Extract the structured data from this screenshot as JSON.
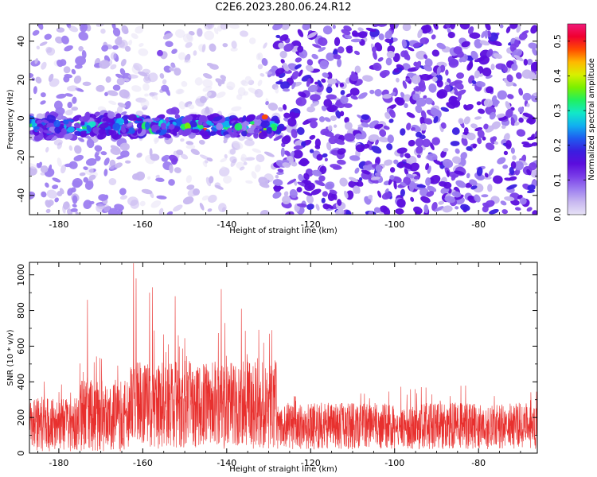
{
  "title": "C2E6.2023.280.06.24.R12",
  "colors": {
    "snr_line": "#e8302e",
    "colormap": [
      "#e7e2f6",
      "#c8b8f0",
      "#9d7ef0",
      "#7a3ee8",
      "#5b0ddd",
      "#3a1ee0",
      "#1f5cf0",
      "#11b0f0",
      "#12e8c8",
      "#20f060",
      "#7af000",
      "#d8f000",
      "#ffb800",
      "#ff4a00",
      "#f00030",
      "#f01a7a"
    ]
  },
  "chart_data": [
    {
      "type": "heatmap",
      "xlabel": "Height of straight line (km)",
      "ylabel": "Frequency (Hz)",
      "xlim": [
        -187,
        -66
      ],
      "ylim": [
        -50,
        49
      ],
      "xticks": [
        -180,
        -160,
        -140,
        -120,
        -100,
        -80
      ],
      "yticks": [
        -40,
        -20,
        0,
        20,
        40
      ],
      "colorbar": {
        "label": "Normalized spectral amplitude",
        "range": [
          0.0,
          0.55
        ],
        "ticks": [
          "0.0",
          "0.1",
          "0.2",
          "0.3",
          "0.4",
          "0.5"
        ]
      },
      "features": {
        "signal_band": {
          "x_range": [
            -187,
            -127
          ],
          "frequency_center": -4,
          "frequency_halfwidth": 5,
          "peak_amplitude": 0.5
        },
        "noise_regions": [
          {
            "x_range": [
              -187,
              -163
            ],
            "level": 0.05
          },
          {
            "x_range": [
              -163,
              -156
            ],
            "level": 0.02
          },
          {
            "x_range": [
              -156,
              -152
            ],
            "level": 0.06
          },
          {
            "x_range": [
              -152,
              -140
            ],
            "level": 0.025
          },
          {
            "x_range": [
              -140,
              -132
            ],
            "level": 0.015
          },
          {
            "x_range": [
              -132,
              -128
            ],
            "level": 0.04
          },
          {
            "x_range": [
              -128,
              -66
            ],
            "level": 0.1
          }
        ]
      }
    },
    {
      "type": "line",
      "xlabel": "Height of straight line (km)",
      "ylabel": "SNR (10 * v/v)",
      "xlim": [
        -187,
        -66
      ],
      "ylim": [
        0,
        1070
      ],
      "xticks": [
        -180,
        -160,
        -140,
        -120,
        -100,
        -80
      ],
      "yticks": [
        0,
        200,
        400,
        600,
        800,
        1000
      ],
      "envelope": [
        {
          "x_range": [
            -187,
            -175
          ],
          "min": 20,
          "max": 420
        },
        {
          "x_range": [
            -175,
            -163
          ],
          "min": 20,
          "max": 560
        },
        {
          "x_range": [
            -163,
            -128
          ],
          "min": 40,
          "max": 700
        },
        {
          "x_range": [
            -128,
            -66
          ],
          "min": 30,
          "max": 380
        }
      ],
      "peaks": [
        {
          "x": -173.2,
          "y": 860
        },
        {
          "x": -162.2,
          "y": 1065
        },
        {
          "x": -161.6,
          "y": 980
        },
        {
          "x": -158.4,
          "y": 900
        },
        {
          "x": -157.7,
          "y": 930
        },
        {
          "x": -152.3,
          "y": 880
        },
        {
          "x": -150.0,
          "y": 645
        },
        {
          "x": -141.3,
          "y": 920
        },
        {
          "x": -140.4,
          "y": 730
        },
        {
          "x": -136.5,
          "y": 810
        },
        {
          "x": -129.8,
          "y": 670
        },
        {
          "x": -129.3,
          "y": 690
        }
      ]
    }
  ]
}
